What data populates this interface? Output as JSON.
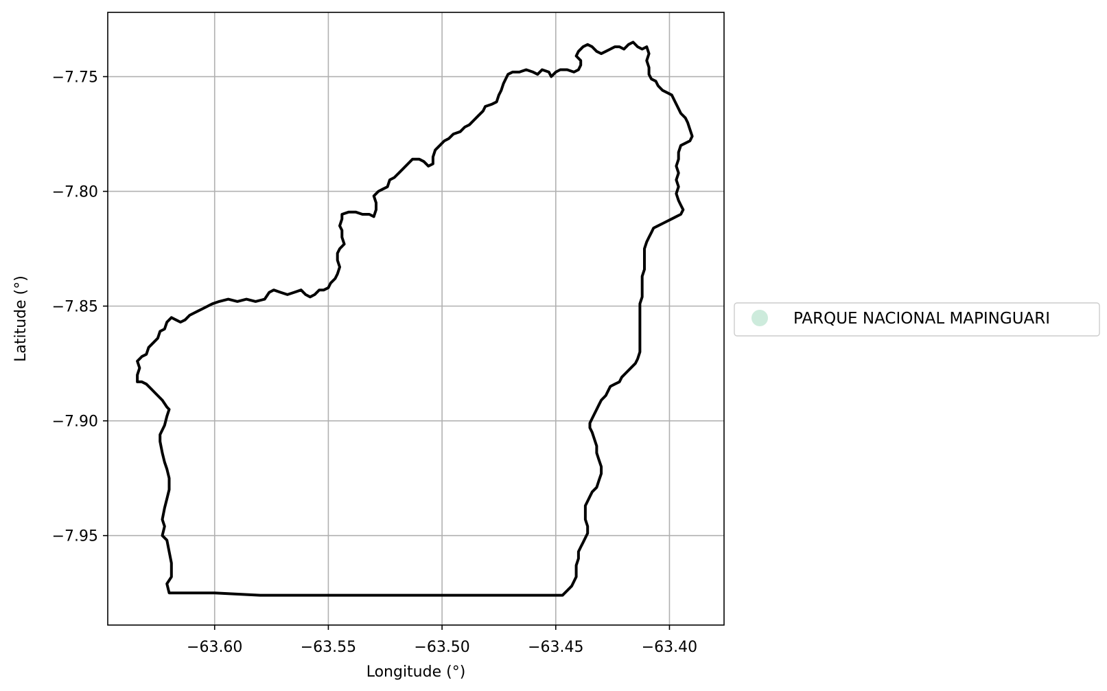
{
  "chart_data": {
    "type": "map",
    "xlabel": "Longitude (°)",
    "ylabel": "Latitude (°)",
    "xlim": [
      -63.647,
      -63.376
    ],
    "ylim": [
      -7.989,
      -7.722
    ],
    "xticks": [
      -63.6,
      -63.55,
      -63.5,
      -63.45,
      -63.4
    ],
    "yticks": [
      -7.75,
      -7.8,
      -7.85,
      -7.9,
      -7.95
    ],
    "xtick_labels": [
      "−63.60",
      "−63.55",
      "−63.50",
      "−63.45",
      "−63.40"
    ],
    "ytick_labels": [
      "−7.75",
      "−7.80",
      "−7.85",
      "−7.90",
      "−7.95"
    ],
    "grid": true,
    "legend": {
      "placement": "center-right outside plot",
      "entries": [
        {
          "label": "PARQUE NACIONAL MAPINGUARI",
          "color": "#cdebdc"
        }
      ]
    },
    "boundary_color": "#000000",
    "boundary": [
      [
        -63.62,
        -7.975
      ],
      [
        -63.621,
        -7.971
      ],
      [
        -63.619,
        -7.968
      ],
      [
        -63.619,
        -7.962
      ],
      [
        -63.62,
        -7.957
      ],
      [
        -63.621,
        -7.952
      ],
      [
        -63.623,
        -7.95
      ],
      [
        -63.622,
        -7.946
      ],
      [
        -63.623,
        -7.943
      ],
      [
        -63.622,
        -7.938
      ],
      [
        -63.621,
        -7.934
      ],
      [
        -63.62,
        -7.93
      ],
      [
        -63.62,
        -7.925
      ],
      [
        -63.621,
        -7.921
      ],
      [
        -63.622,
        -7.918
      ],
      [
        -63.623,
        -7.914
      ],
      [
        -63.624,
        -7.909
      ],
      [
        -63.624,
        -7.906
      ],
      [
        -63.622,
        -7.902
      ],
      [
        -63.621,
        -7.898
      ],
      [
        -63.62,
        -7.895
      ],
      [
        -63.621,
        -7.894
      ],
      [
        -63.623,
        -7.891
      ],
      [
        -63.626,
        -7.888
      ],
      [
        -63.628,
        -7.886
      ],
      [
        -63.63,
        -7.884
      ],
      [
        -63.632,
        -7.883
      ],
      [
        -63.634,
        -7.883
      ],
      [
        -63.634,
        -7.88
      ],
      [
        -63.633,
        -7.877
      ],
      [
        -63.634,
        -7.874
      ],
      [
        -63.632,
        -7.872
      ],
      [
        -63.63,
        -7.871
      ],
      [
        -63.629,
        -7.868
      ],
      [
        -63.627,
        -7.866
      ],
      [
        -63.625,
        -7.864
      ],
      [
        -63.624,
        -7.861
      ],
      [
        -63.622,
        -7.86
      ],
      [
        -63.621,
        -7.857
      ],
      [
        -63.619,
        -7.855
      ],
      [
        -63.617,
        -7.856
      ],
      [
        -63.615,
        -7.857
      ],
      [
        -63.613,
        -7.856
      ],
      [
        -63.611,
        -7.854
      ],
      [
        -63.609,
        -7.853
      ],
      [
        -63.607,
        -7.852
      ],
      [
        -63.605,
        -7.851
      ],
      [
        -63.603,
        -7.85
      ],
      [
        -63.601,
        -7.849
      ],
      [
        -63.598,
        -7.848
      ],
      [
        -63.594,
        -7.847
      ],
      [
        -63.59,
        -7.848
      ],
      [
        -63.586,
        -7.847
      ],
      [
        -63.582,
        -7.848
      ],
      [
        -63.578,
        -7.847
      ],
      [
        -63.576,
        -7.844
      ],
      [
        -63.574,
        -7.843
      ],
      [
        -63.571,
        -7.844
      ],
      [
        -63.568,
        -7.845
      ],
      [
        -63.565,
        -7.844
      ],
      [
        -63.562,
        -7.843
      ],
      [
        -63.56,
        -7.845
      ],
      [
        -63.558,
        -7.846
      ],
      [
        -63.556,
        -7.845
      ],
      [
        -63.554,
        -7.843
      ],
      [
        -63.552,
        -7.843
      ],
      [
        -63.55,
        -7.842
      ],
      [
        -63.549,
        -7.84
      ],
      [
        -63.547,
        -7.838
      ],
      [
        -63.546,
        -7.836
      ],
      [
        -63.545,
        -7.833
      ],
      [
        -63.546,
        -7.83
      ],
      [
        -63.546,
        -7.827
      ],
      [
        -63.545,
        -7.825
      ],
      [
        -63.543,
        -7.823
      ],
      [
        -63.544,
        -7.82
      ],
      [
        -63.544,
        -7.817
      ],
      [
        -63.545,
        -7.815
      ],
      [
        -63.544,
        -7.812
      ],
      [
        -63.544,
        -7.81
      ],
      [
        -63.541,
        -7.809
      ],
      [
        -63.538,
        -7.809
      ],
      [
        -63.535,
        -7.81
      ],
      [
        -63.532,
        -7.81
      ],
      [
        -63.53,
        -7.811
      ],
      [
        -63.529,
        -7.808
      ],
      [
        -63.529,
        -7.805
      ],
      [
        -63.53,
        -7.802
      ],
      [
        -63.528,
        -7.8
      ],
      [
        -63.526,
        -7.799
      ],
      [
        -63.524,
        -7.798
      ],
      [
        -63.523,
        -7.795
      ],
      [
        -63.521,
        -7.794
      ],
      [
        -63.519,
        -7.792
      ],
      [
        -63.517,
        -7.79
      ],
      [
        -63.515,
        -7.788
      ],
      [
        -63.513,
        -7.786
      ],
      [
        -63.51,
        -7.786
      ],
      [
        -63.508,
        -7.787
      ],
      [
        -63.506,
        -7.789
      ],
      [
        -63.504,
        -7.788
      ],
      [
        -63.504,
        -7.785
      ],
      [
        -63.503,
        -7.782
      ],
      [
        -63.501,
        -7.78
      ],
      [
        -63.499,
        -7.778
      ],
      [
        -63.497,
        -7.777
      ],
      [
        -63.495,
        -7.775
      ],
      [
        -63.492,
        -7.774
      ],
      [
        -63.49,
        -7.772
      ],
      [
        -63.488,
        -7.771
      ],
      [
        -63.486,
        -7.769
      ],
      [
        -63.484,
        -7.767
      ],
      [
        -63.482,
        -7.765
      ],
      [
        -63.481,
        -7.763
      ],
      [
        -63.478,
        -7.762
      ],
      [
        -63.476,
        -7.761
      ],
      [
        -63.475,
        -7.758
      ],
      [
        -63.474,
        -7.756
      ],
      [
        -63.473,
        -7.753
      ],
      [
        -63.472,
        -7.751
      ],
      [
        -63.471,
        -7.749
      ],
      [
        -63.469,
        -7.748
      ],
      [
        -63.466,
        -7.748
      ],
      [
        -63.463,
        -7.747
      ],
      [
        -63.46,
        -7.748
      ],
      [
        -63.458,
        -7.749
      ],
      [
        -63.456,
        -7.747
      ],
      [
        -63.453,
        -7.748
      ],
      [
        -63.452,
        -7.75
      ],
      [
        -63.45,
        -7.748
      ],
      [
        -63.448,
        -7.747
      ],
      [
        -63.445,
        -7.747
      ],
      [
        -63.442,
        -7.748
      ],
      [
        -63.44,
        -7.747
      ],
      [
        -63.439,
        -7.745
      ],
      [
        -63.439,
        -7.743
      ],
      [
        -63.441,
        -7.741
      ],
      [
        -63.44,
        -7.739
      ],
      [
        -63.438,
        -7.737
      ],
      [
        -63.436,
        -7.736
      ],
      [
        -63.434,
        -7.737
      ],
      [
        -63.432,
        -7.739
      ],
      [
        -63.43,
        -7.74
      ],
      [
        -63.428,
        -7.739
      ],
      [
        -63.426,
        -7.738
      ],
      [
        -63.424,
        -7.737
      ],
      [
        -63.422,
        -7.737
      ],
      [
        -63.42,
        -7.738
      ],
      [
        -63.418,
        -7.736
      ],
      [
        -63.416,
        -7.735
      ],
      [
        -63.414,
        -7.737
      ],
      [
        -63.412,
        -7.738
      ],
      [
        -63.41,
        -7.737
      ],
      [
        -63.409,
        -7.74
      ],
      [
        -63.41,
        -7.743
      ],
      [
        -63.409,
        -7.746
      ],
      [
        -63.409,
        -7.749
      ],
      [
        -63.408,
        -7.751
      ],
      [
        -63.406,
        -7.752
      ],
      [
        -63.405,
        -7.754
      ],
      [
        -63.403,
        -7.756
      ],
      [
        -63.401,
        -7.757
      ],
      [
        -63.399,
        -7.758
      ],
      [
        -63.398,
        -7.76
      ],
      [
        -63.397,
        -7.762
      ],
      [
        -63.396,
        -7.764
      ],
      [
        -63.395,
        -7.766
      ],
      [
        -63.393,
        -7.768
      ],
      [
        -63.392,
        -7.77
      ],
      [
        -63.391,
        -7.773
      ],
      [
        -63.39,
        -7.776
      ],
      [
        -63.391,
        -7.778
      ],
      [
        -63.393,
        -7.779
      ],
      [
        -63.395,
        -7.78
      ],
      [
        -63.396,
        -7.783
      ],
      [
        -63.396,
        -7.786
      ],
      [
        -63.397,
        -7.789
      ],
      [
        -63.396,
        -7.792
      ],
      [
        -63.397,
        -7.795
      ],
      [
        -63.396,
        -7.798
      ],
      [
        -63.397,
        -7.801
      ],
      [
        -63.396,
        -7.804
      ],
      [
        -63.395,
        -7.806
      ],
      [
        -63.394,
        -7.808
      ],
      [
        -63.395,
        -7.81
      ],
      [
        -63.397,
        -7.811
      ],
      [
        -63.399,
        -7.812
      ],
      [
        -63.401,
        -7.813
      ],
      [
        -63.403,
        -7.814
      ],
      [
        -63.405,
        -7.815
      ],
      [
        -63.407,
        -7.816
      ],
      [
        -63.408,
        -7.818
      ],
      [
        -63.409,
        -7.82
      ],
      [
        -63.41,
        -7.822
      ],
      [
        -63.411,
        -7.825
      ],
      [
        -63.411,
        -7.828
      ],
      [
        -63.411,
        -7.831
      ],
      [
        -63.411,
        -7.834
      ],
      [
        -63.412,
        -7.837
      ],
      [
        -63.412,
        -7.84
      ],
      [
        -63.412,
        -7.843
      ],
      [
        -63.412,
        -7.846
      ],
      [
        -63.413,
        -7.849
      ],
      [
        -63.413,
        -7.852
      ],
      [
        -63.413,
        -7.855
      ],
      [
        -63.413,
        -7.858
      ],
      [
        -63.413,
        -7.861
      ],
      [
        -63.413,
        -7.864
      ],
      [
        -63.413,
        -7.867
      ],
      [
        -63.413,
        -7.87
      ],
      [
        -63.414,
        -7.873
      ],
      [
        -63.415,
        -7.875
      ],
      [
        -63.417,
        -7.877
      ],
      [
        -63.419,
        -7.879
      ],
      [
        -63.421,
        -7.881
      ],
      [
        -63.422,
        -7.883
      ],
      [
        -63.424,
        -7.884
      ],
      [
        -63.426,
        -7.885
      ],
      [
        -63.427,
        -7.887
      ],
      [
        -63.428,
        -7.889
      ],
      [
        -63.43,
        -7.891
      ],
      [
        -63.431,
        -7.893
      ],
      [
        -63.432,
        -7.895
      ],
      [
        -63.433,
        -7.897
      ],
      [
        -63.434,
        -7.899
      ],
      [
        -63.435,
        -7.901
      ],
      [
        -63.435,
        -7.903
      ],
      [
        -63.434,
        -7.905
      ],
      [
        -63.433,
        -7.908
      ],
      [
        -63.432,
        -7.911
      ],
      [
        -63.432,
        -7.914
      ],
      [
        -63.431,
        -7.917
      ],
      [
        -63.43,
        -7.92
      ],
      [
        -63.43,
        -7.923
      ],
      [
        -63.431,
        -7.926
      ],
      [
        -63.432,
        -7.929
      ],
      [
        -63.434,
        -7.931
      ],
      [
        -63.435,
        -7.933
      ],
      [
        -63.436,
        -7.935
      ],
      [
        -63.437,
        -7.937
      ],
      [
        -63.437,
        -7.94
      ],
      [
        -63.437,
        -7.943
      ],
      [
        -63.436,
        -7.946
      ],
      [
        -63.436,
        -7.949
      ],
      [
        -63.437,
        -7.951
      ],
      [
        -63.438,
        -7.953
      ],
      [
        -63.439,
        -7.955
      ],
      [
        -63.44,
        -7.957
      ],
      [
        -63.44,
        -7.96
      ],
      [
        -63.441,
        -7.963
      ],
      [
        -63.441,
        -7.966
      ],
      [
        -63.441,
        -7.968
      ],
      [
        -63.442,
        -7.97
      ],
      [
        -63.443,
        -7.972
      ],
      [
        -63.445,
        -7.974
      ],
      [
        -63.447,
        -7.976
      ],
      [
        -63.46,
        -7.976
      ],
      [
        -63.48,
        -7.976
      ],
      [
        -63.5,
        -7.976
      ],
      [
        -63.52,
        -7.976
      ],
      [
        -63.54,
        -7.976
      ],
      [
        -63.56,
        -7.976
      ],
      [
        -63.58,
        -7.976
      ],
      [
        -63.6,
        -7.975
      ],
      [
        -63.62,
        -7.975
      ]
    ]
  }
}
